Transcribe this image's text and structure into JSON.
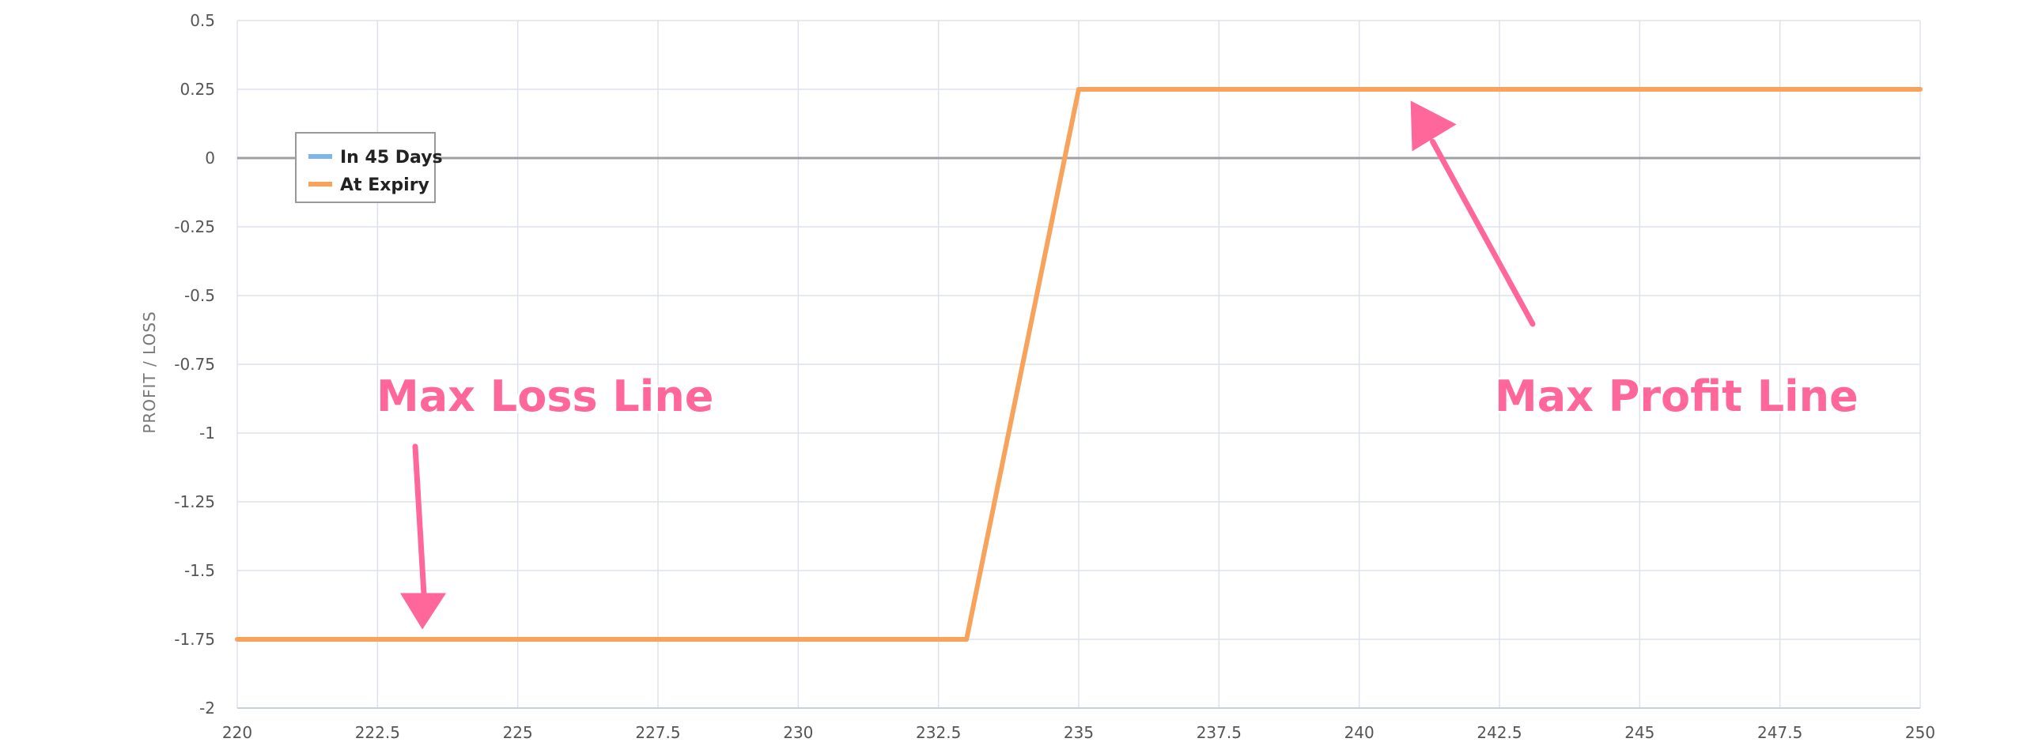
{
  "chart_data": {
    "type": "line",
    "title": "",
    "xlabel": "",
    "ylabel": "PROFIT / LOSS",
    "xlim": [
      220,
      250
    ],
    "ylim": [
      -2,
      0.5
    ],
    "x_ticks": [
      220,
      222.5,
      225,
      227.5,
      230,
      232.5,
      235,
      237.5,
      240,
      242.5,
      245,
      247.5,
      250
    ],
    "x_tick_labels": [
      "220",
      "222.5",
      "225",
      "227.5",
      "230",
      "232.5",
      "235",
      "237.5",
      "240",
      "242.5",
      "245",
      "247.5",
      "250"
    ],
    "y_ticks": [
      0.5,
      0.25,
      0,
      -0.25,
      -0.5,
      -0.75,
      -1,
      -1.25,
      -1.5,
      -1.75,
      -2
    ],
    "y_tick_labels": [
      "0.5",
      "0.25",
      "0",
      "-0.25",
      "-0.5",
      "-0.75",
      "-1",
      "-1.25",
      "-1.5",
      "-1.75",
      "-2"
    ],
    "grid": true,
    "legend_position": "top-left",
    "series": [
      {
        "name": "In 45 Days",
        "color": "#7cb5ec",
        "x": [],
        "y": []
      },
      {
        "name": "At Expiry",
        "color": "#f7a35c",
        "x": [
          220,
          233,
          235,
          250
        ],
        "y": [
          -1.75,
          -1.75,
          0.25,
          0.25
        ]
      }
    ],
    "annotations": [
      {
        "text": "Max Loss Line",
        "color": "#ff6699",
        "points_to": {
          "x": 223.3,
          "y": -1.72
        }
      },
      {
        "text": "Max Profit Line",
        "color": "#ff6699",
        "points_to": {
          "x": 241,
          "y": 0.18
        }
      }
    ]
  }
}
